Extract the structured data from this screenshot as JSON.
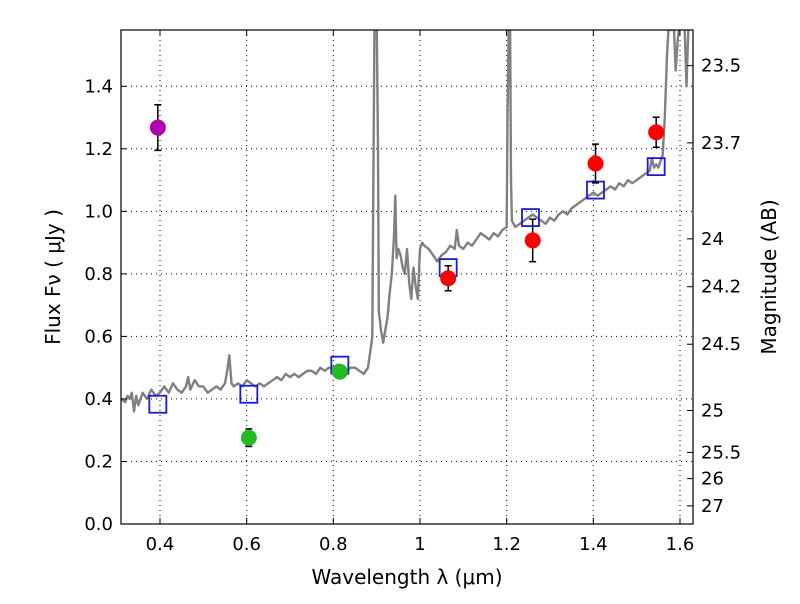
{
  "chart_data": {
    "type": "scatter",
    "xlabel": "Wavelength  λ (μm)",
    "ylabel_left": "Flux  Fν  ( μJy )",
    "ylabel_right": "Magnitude (AB)",
    "xlim": [
      0.31,
      1.63
    ],
    "ylim": [
      0.0,
      1.58
    ],
    "grid": true,
    "x_ticks": [
      0.4,
      0.6,
      0.8,
      1.0,
      1.2,
      1.4,
      1.6
    ],
    "x_tick_labels": [
      "0.4",
      "0.6",
      "0.8",
      "1",
      "1.2",
      "1.4",
      "1.6"
    ],
    "y_ticks": [
      0.0,
      0.2,
      0.4,
      0.6,
      0.8,
      1.0,
      1.2,
      1.4
    ],
    "y_tick_labels": [
      "0.0",
      "0.2",
      "0.4",
      "0.6",
      "0.8",
      "1.0",
      "1.2",
      "1.4"
    ],
    "right_ticks": [
      {
        "label": "23.5",
        "flux": 1.466
      },
      {
        "label": "23.7",
        "flux": 1.219
      },
      {
        "label": "24",
        "flux": 0.912
      },
      {
        "label": "24.2",
        "flux": 0.759
      },
      {
        "label": "24.5",
        "flux": 0.575
      },
      {
        "label": "25",
        "flux": 0.363
      },
      {
        "label": "25.5",
        "flux": 0.229
      },
      {
        "label": "26",
        "flux": 0.145
      },
      {
        "label": "27",
        "flux": 0.058
      }
    ],
    "series": [
      {
        "name": "spectrum",
        "kind": "line",
        "color": "#808080",
        "points": [
          [
            0.31,
            0.4
          ],
          [
            0.32,
            0.39
          ],
          [
            0.325,
            0.41
          ],
          [
            0.33,
            0.4
          ],
          [
            0.335,
            0.42
          ],
          [
            0.34,
            0.36
          ],
          [
            0.345,
            0.41
          ],
          [
            0.35,
            0.38
          ],
          [
            0.36,
            0.42
          ],
          [
            0.37,
            0.4
          ],
          [
            0.38,
            0.43
          ],
          [
            0.39,
            0.41
          ],
          [
            0.4,
            0.42
          ],
          [
            0.41,
            0.44
          ],
          [
            0.42,
            0.42
          ],
          [
            0.43,
            0.45
          ],
          [
            0.44,
            0.43
          ],
          [
            0.45,
            0.42
          ],
          [
            0.46,
            0.44
          ],
          [
            0.465,
            0.47
          ],
          [
            0.47,
            0.43
          ],
          [
            0.48,
            0.46
          ],
          [
            0.49,
            0.44
          ],
          [
            0.5,
            0.44
          ],
          [
            0.51,
            0.42
          ],
          [
            0.52,
            0.43
          ],
          [
            0.53,
            0.44
          ],
          [
            0.54,
            0.43
          ],
          [
            0.55,
            0.45
          ],
          [
            0.555,
            0.49
          ],
          [
            0.56,
            0.54
          ],
          [
            0.565,
            0.45
          ],
          [
            0.57,
            0.44
          ],
          [
            0.58,
            0.45
          ],
          [
            0.59,
            0.44
          ],
          [
            0.6,
            0.46
          ],
          [
            0.61,
            0.45
          ],
          [
            0.62,
            0.44
          ],
          [
            0.63,
            0.45
          ],
          [
            0.64,
            0.44
          ],
          [
            0.65,
            0.45
          ],
          [
            0.66,
            0.46
          ],
          [
            0.67,
            0.47
          ],
          [
            0.68,
            0.46
          ],
          [
            0.69,
            0.48
          ],
          [
            0.7,
            0.47
          ],
          [
            0.71,
            0.48
          ],
          [
            0.72,
            0.47
          ],
          [
            0.73,
            0.48
          ],
          [
            0.74,
            0.49
          ],
          [
            0.75,
            0.49
          ],
          [
            0.76,
            0.48
          ],
          [
            0.77,
            0.5
          ],
          [
            0.78,
            0.49
          ],
          [
            0.79,
            0.5
          ],
          [
            0.8,
            0.5
          ],
          [
            0.81,
            0.51
          ],
          [
            0.82,
            0.5
          ],
          [
            0.83,
            0.49
          ],
          [
            0.84,
            0.5
          ],
          [
            0.85,
            0.5
          ],
          [
            0.86,
            0.49
          ],
          [
            0.87,
            0.48
          ],
          [
            0.88,
            0.5
          ],
          [
            0.885,
            0.55
          ],
          [
            0.89,
            0.6
          ],
          [
            0.893,
            1.2
          ],
          [
            0.895,
            1.62
          ],
          [
            0.9,
            1.62
          ],
          [
            0.903,
            1.2
          ],
          [
            0.905,
            0.68
          ],
          [
            0.91,
            0.62
          ],
          [
            0.915,
            0.58
          ],
          [
            0.92,
            0.62
          ],
          [
            0.925,
            0.66
          ],
          [
            0.93,
            0.74
          ],
          [
            0.935,
            0.8
          ],
          [
            0.94,
            0.92
          ],
          [
            0.943,
            1.05
          ],
          [
            0.946,
            0.85
          ],
          [
            0.95,
            0.88
          ],
          [
            0.955,
            0.86
          ],
          [
            0.96,
            0.82
          ],
          [
            0.965,
            0.8
          ],
          [
            0.97,
            0.88
          ],
          [
            0.975,
            0.77
          ],
          [
            0.98,
            0.72
          ],
          [
            0.985,
            0.82
          ],
          [
            0.99,
            0.76
          ],
          [
            0.995,
            0.72
          ],
          [
            1.0,
            0.88
          ],
          [
            1.005,
            0.9
          ],
          [
            1.01,
            0.89
          ],
          [
            1.02,
            0.88
          ],
          [
            1.03,
            0.86
          ],
          [
            1.04,
            0.84
          ],
          [
            1.05,
            0.86
          ],
          [
            1.06,
            0.87
          ],
          [
            1.07,
            0.89
          ],
          [
            1.08,
            0.88
          ],
          [
            1.085,
            0.94
          ],
          [
            1.09,
            0.89
          ],
          [
            1.1,
            0.88
          ],
          [
            1.11,
            0.9
          ],
          [
            1.12,
            0.89
          ],
          [
            1.13,
            0.91
          ],
          [
            1.14,
            0.93
          ],
          [
            1.15,
            0.92
          ],
          [
            1.16,
            0.91
          ],
          [
            1.17,
            0.93
          ],
          [
            1.18,
            0.92
          ],
          [
            1.19,
            0.94
          ],
          [
            1.2,
            0.95
          ],
          [
            1.202,
            1.3
          ],
          [
            1.205,
            1.6
          ],
          [
            1.208,
            1.6
          ],
          [
            1.21,
            1.1
          ],
          [
            1.212,
            0.97
          ],
          [
            1.22,
            0.95
          ],
          [
            1.23,
            0.96
          ],
          [
            1.24,
            0.97
          ],
          [
            1.25,
            0.98
          ],
          [
            1.26,
            0.99
          ],
          [
            1.27,
            0.98
          ],
          [
            1.28,
            0.97
          ],
          [
            1.29,
            0.96
          ],
          [
            1.3,
            0.98
          ],
          [
            1.31,
            0.97
          ],
          [
            1.32,
            0.99
          ],
          [
            1.33,
            1.0
          ],
          [
            1.34,
            0.99
          ],
          [
            1.35,
            1.01
          ],
          [
            1.36,
            1.02
          ],
          [
            1.37,
            1.03
          ],
          [
            1.38,
            1.04
          ],
          [
            1.39,
            1.05
          ],
          [
            1.4,
            1.06
          ],
          [
            1.41,
            1.05
          ],
          [
            1.42,
            1.06
          ],
          [
            1.43,
            1.07
          ],
          [
            1.44,
            1.08
          ],
          [
            1.45,
            1.07
          ],
          [
            1.46,
            1.09
          ],
          [
            1.47,
            1.08
          ],
          [
            1.48,
            1.1
          ],
          [
            1.49,
            1.09
          ],
          [
            1.5,
            1.1
          ],
          [
            1.51,
            1.11
          ],
          [
            1.52,
            1.12
          ],
          [
            1.53,
            1.13
          ],
          [
            1.535,
            1.17
          ],
          [
            1.54,
            1.14
          ],
          [
            1.545,
            1.15
          ],
          [
            1.55,
            1.14
          ],
          [
            1.555,
            1.16
          ],
          [
            1.56,
            1.18
          ],
          [
            1.565,
            1.3
          ],
          [
            1.57,
            1.5
          ],
          [
            1.575,
            1.62
          ],
          [
            1.58,
            1.58
          ],
          [
            1.585,
            1.62
          ],
          [
            1.59,
            1.45
          ],
          [
            1.595,
            1.55
          ],
          [
            1.6,
            1.62
          ],
          [
            1.61,
            1.62
          ],
          [
            1.615,
            1.4
          ],
          [
            1.62,
            1.62
          ],
          [
            1.63,
            1.62
          ]
        ]
      },
      {
        "name": "model photometry",
        "kind": "open-square",
        "color": "#1a1adb",
        "points": [
          [
            0.395,
            0.383
          ],
          [
            0.605,
            0.415
          ],
          [
            0.815,
            0.508
          ],
          [
            1.065,
            0.82
          ],
          [
            1.255,
            0.98
          ],
          [
            1.405,
            1.068
          ],
          [
            1.545,
            1.143
          ]
        ]
      },
      {
        "name": "ultraviolet point",
        "kind": "dot",
        "color": "#b000b0",
        "points": [
          [
            0.395,
            1.268,
            0.073
          ]
        ]
      },
      {
        "name": "optical points",
        "kind": "dot",
        "color": "#22bb22",
        "points": [
          [
            0.605,
            0.276,
            0.028
          ],
          [
            0.815,
            0.487,
            0.0
          ]
        ]
      },
      {
        "name": "near-infrared points",
        "kind": "dot",
        "color": "#ff0000",
        "points": [
          [
            1.065,
            0.786,
            0.04
          ],
          [
            1.26,
            0.907,
            0.068
          ],
          [
            1.405,
            1.153,
            0.062
          ],
          [
            1.545,
            1.253,
            0.048
          ]
        ]
      }
    ]
  }
}
